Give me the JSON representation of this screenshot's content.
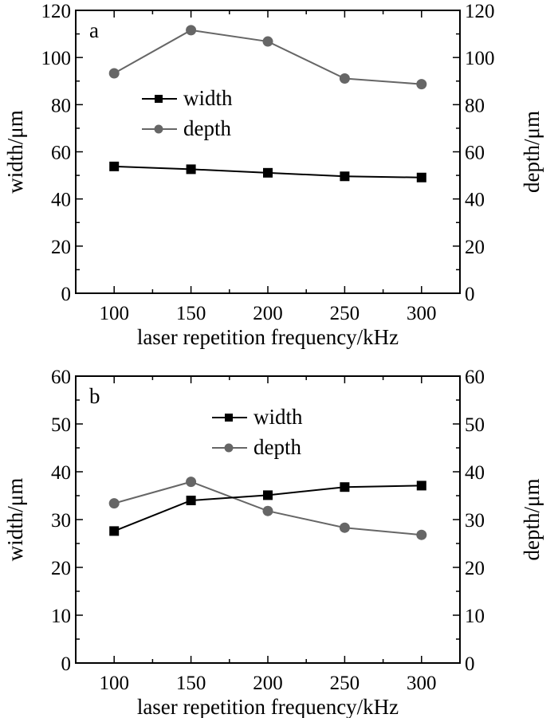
{
  "chart_data": [
    {
      "type": "line",
      "panel_label": "a",
      "xlabel": "laser repetition frequency/kHz",
      "ylabel": "width/μm",
      "y2label": "depth/μm",
      "x": [
        100,
        150,
        200,
        250,
        300
      ],
      "xticks": [
        100,
        150,
        200,
        250,
        300
      ],
      "xlim": [
        75,
        325
      ],
      "ylim": [
        0,
        120
      ],
      "yticks": [
        0,
        20,
        40,
        60,
        80,
        100,
        120
      ],
      "y2lim": [
        0,
        120
      ],
      "y2ticks": [
        0,
        20,
        40,
        60,
        80,
        100,
        120
      ],
      "grid": false,
      "legend_position": "upper-center-left",
      "series": [
        {
          "name": "width",
          "axis": "left",
          "marker": "square",
          "color": "#000000",
          "values": [
            53.8,
            52.6,
            51.1,
            49.6,
            49.1
          ]
        },
        {
          "name": "depth",
          "axis": "right",
          "marker": "circle",
          "color": "#666666",
          "values": [
            93.3,
            111.6,
            106.8,
            91.1,
            88.7
          ]
        }
      ]
    },
    {
      "type": "line",
      "panel_label": "b",
      "xlabel": "laser repetition frequency/kHz",
      "ylabel": "width/μm",
      "y2label": "depth/μm",
      "x": [
        100,
        150,
        200,
        250,
        300
      ],
      "xticks": [
        100,
        150,
        200,
        250,
        300
      ],
      "xlim": [
        75,
        325
      ],
      "ylim": [
        0,
        60
      ],
      "yticks": [
        0,
        10,
        20,
        30,
        40,
        50,
        60
      ],
      "y2lim": [
        0,
        60
      ],
      "y2ticks": [
        0,
        10,
        20,
        30,
        40,
        50,
        60
      ],
      "grid": false,
      "legend_position": "upper-center",
      "series": [
        {
          "name": "width",
          "axis": "left",
          "marker": "square",
          "color": "#000000",
          "values": [
            27.6,
            34.0,
            35.1,
            36.8,
            37.1
          ]
        },
        {
          "name": "depth",
          "axis": "right",
          "marker": "circle",
          "color": "#666666",
          "values": [
            33.4,
            37.9,
            31.8,
            28.3,
            26.8
          ]
        }
      ]
    }
  ]
}
